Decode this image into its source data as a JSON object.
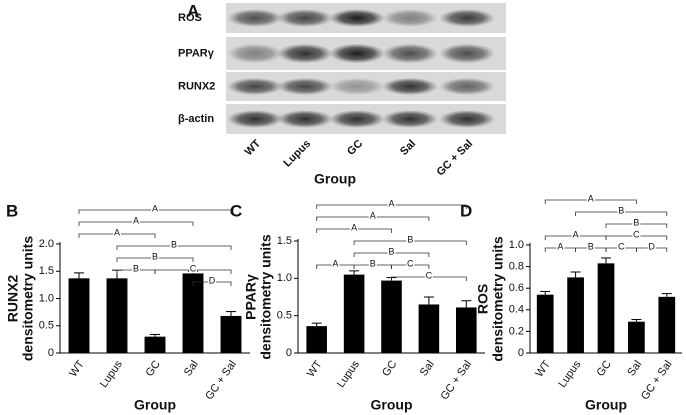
{
  "blot": {
    "panel": "A",
    "rows": [
      "ROS",
      "PPARγ",
      "RUNX2",
      "β-actin"
    ],
    "lanes": [
      "WT",
      "Lupus",
      "GC",
      "Sal",
      "GC + Sal"
    ],
    "xlabel": "Group"
  },
  "chart_data": [
    {
      "type": "bar",
      "panel": "B",
      "ylabel": [
        "RUNX2",
        "densitometry units"
      ],
      "xlabel": "Group",
      "categories": [
        "WT",
        "Lupus",
        "GC",
        "Sal",
        "GC + Sal"
      ],
      "values": [
        1.37,
        1.37,
        0.3,
        1.46,
        0.68
      ],
      "errors": [
        0.1,
        0.15,
        0.04,
        0.04,
        0.08
      ],
      "color": "#000000",
      "ylim": [
        0,
        2
      ],
      "yticks": [
        0,
        0.5,
        {
          "value": 1,
          "label": "1.0"
        },
        1.5,
        {
          "value": 2,
          "label": "2.0"
        }
      ],
      "brackets": [
        {
          "label": "A",
          "span": [
            0,
            4
          ]
        },
        {
          "label": "A",
          "span": [
            0,
            3
          ]
        },
        {
          "label": "A",
          "span": [
            0,
            2
          ]
        },
        {
          "label": "B",
          "span": [
            1,
            4
          ]
        },
        {
          "label": "B",
          "span": [
            1,
            3
          ]
        },
        {
          "label": "B",
          "span": [
            1,
            2
          ]
        },
        {
          "label": "C",
          "span": [
            2,
            4
          ]
        },
        {
          "label": "D",
          "span": [
            3,
            4
          ]
        }
      ]
    },
    {
      "type": "bar",
      "panel": "C",
      "ylabel": [
        "PPARγ",
        "densitometry units"
      ],
      "xlabel": "Group",
      "categories": [
        "WT",
        "Lupus",
        "GC",
        "Sal",
        "GC + Sal"
      ],
      "values": [
        0.36,
        1.05,
        0.97,
        0.65,
        0.61
      ],
      "errors": [
        0.04,
        0.05,
        0.04,
        0.1,
        0.09
      ],
      "color": "#000000",
      "ylim": [
        0,
        1.5
      ],
      "yticks": [
        0,
        0.5,
        {
          "value": 1,
          "label": "1.0"
        },
        1.5
      ],
      "brackets": [
        {
          "label": "A",
          "span": [
            0,
            4
          ]
        },
        {
          "label": "A",
          "span": [
            0,
            3
          ]
        },
        {
          "label": "A",
          "span": [
            0,
            2
          ]
        },
        {
          "label": "B",
          "span": [
            1,
            4
          ]
        },
        {
          "label": "B",
          "span": [
            1,
            3
          ]
        },
        {
          "label": "A",
          "span": [
            0,
            1
          ]
        },
        {
          "label": "B",
          "span": [
            1,
            2
          ]
        },
        {
          "label": "C",
          "span": [
            2,
            3
          ]
        },
        {
          "label": "C",
          "span": [
            2,
            4
          ]
        }
      ]
    },
    {
      "type": "bar",
      "panel": "D",
      "ylabel": [
        "ROS",
        "densitometry units"
      ],
      "xlabel": "Group",
      "categories": [
        "WT",
        "Lupus",
        "GC",
        "Sal",
        "GC + Sal"
      ],
      "values": [
        0.54,
        0.7,
        0.83,
        0.29,
        0.52
      ],
      "errors": [
        0.03,
        0.05,
        0.05,
        0.02,
        0.03
      ],
      "color": "#000000",
      "ylim": [
        0,
        1.0
      ],
      "yticks": [
        0,
        0.2,
        0.4,
        0.6,
        0.8,
        {
          "value": 1,
          "label": "1.0"
        }
      ],
      "brackets": [
        {
          "label": "A",
          "span": [
            0,
            3
          ]
        },
        {
          "label": "B",
          "span": [
            1,
            4
          ]
        },
        {
          "label": "B",
          "span": [
            2,
            4
          ]
        },
        {
          "label": "A",
          "span": [
            0,
            2
          ]
        },
        {
          "label": "C",
          "span": [
            2,
            4
          ]
        },
        {
          "label": "A",
          "span": [
            0,
            1
          ]
        },
        {
          "label": "B",
          "span": [
            1,
            2
          ]
        },
        {
          "label": "C",
          "span": [
            2,
            3
          ]
        },
        {
          "label": "D",
          "span": [
            3,
            4
          ]
        }
      ]
    }
  ]
}
